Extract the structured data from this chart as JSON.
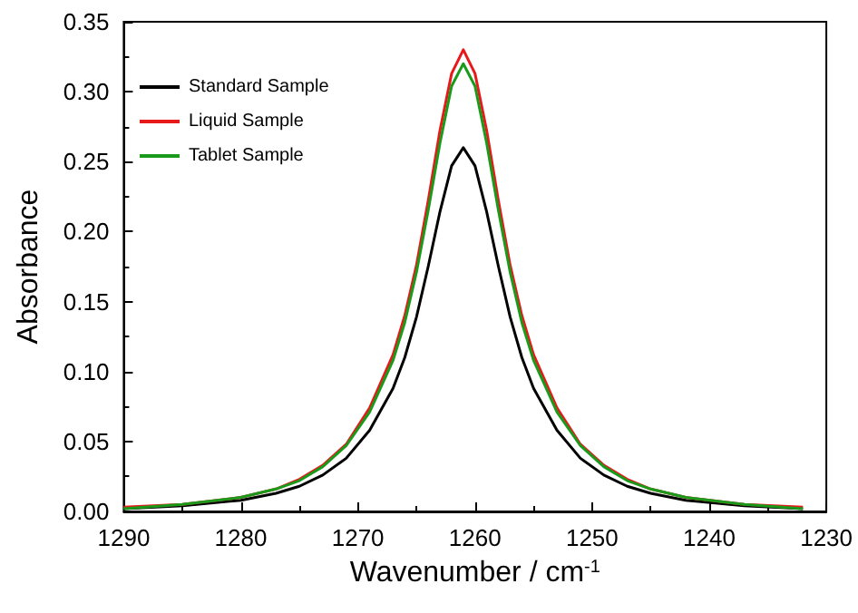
{
  "chart_data": {
    "type": "line",
    "xlabel": "Wavenumber / cm$^{-1}$",
    "ylabel": "Absorbance",
    "x": [
      1290,
      1285,
      1280,
      1277,
      1275,
      1273,
      1271,
      1269,
      1267,
      1266,
      1265,
      1264,
      1263,
      1262,
      1261,
      1260,
      1259,
      1258,
      1257,
      1256,
      1255,
      1253,
      1251,
      1249,
      1247,
      1245,
      1242,
      1237,
      1232
    ],
    "series": [
      {
        "name": "Standard Sample",
        "color": "#000000",
        "values": [
          0.002,
          0.004,
          0.008,
          0.013,
          0.018,
          0.026,
          0.038,
          0.058,
          0.088,
          0.11,
          0.139,
          0.175,
          0.214,
          0.247,
          0.26,
          0.247,
          0.214,
          0.175,
          0.139,
          0.11,
          0.088,
          0.058,
          0.038,
          0.026,
          0.018,
          0.013,
          0.008,
          0.004,
          0.002
        ]
      },
      {
        "name": "Liquid Sample",
        "color": "#e8191a",
        "values": [
          0.003,
          0.005,
          0.01,
          0.016,
          0.023,
          0.033,
          0.048,
          0.074,
          0.112,
          0.14,
          0.176,
          0.222,
          0.272,
          0.313,
          0.33,
          0.313,
          0.272,
          0.222,
          0.176,
          0.14,
          0.112,
          0.074,
          0.048,
          0.033,
          0.023,
          0.016,
          0.01,
          0.005,
          0.003
        ]
      },
      {
        "name": "Tablet Sample",
        "color": "#1a9a1a",
        "values": [
          0.002,
          0.005,
          0.01,
          0.016,
          0.022,
          0.032,
          0.047,
          0.071,
          0.108,
          0.135,
          0.171,
          0.215,
          0.263,
          0.304,
          0.32,
          0.304,
          0.263,
          0.215,
          0.171,
          0.135,
          0.108,
          0.071,
          0.047,
          0.032,
          0.022,
          0.016,
          0.01,
          0.005,
          0.002
        ]
      }
    ],
    "xlim": [
      1290,
      1230
    ],
    "xticks": [
      1290,
      1280,
      1270,
      1260,
      1250,
      1240,
      1230
    ],
    "ylim": [
      0,
      0.35
    ],
    "yticks": [
      {
        "value": 0,
        "label": "0.00"
      },
      {
        "value": 0.05,
        "label": "0.05"
      },
      {
        "value": 0.1,
        "label": "0.10"
      },
      {
        "value": 0.15,
        "label": "0.15"
      },
      {
        "value": 0.2,
        "label": "0.20"
      },
      {
        "value": 0.25,
        "label": "0.25"
      },
      {
        "value": 0.3,
        "label": "0.30"
      },
      {
        "value": 0.35,
        "label": "0.35"
      }
    ],
    "legend": "top left",
    "grid": false,
    "marker": "none",
    "line_style": "solid"
  }
}
